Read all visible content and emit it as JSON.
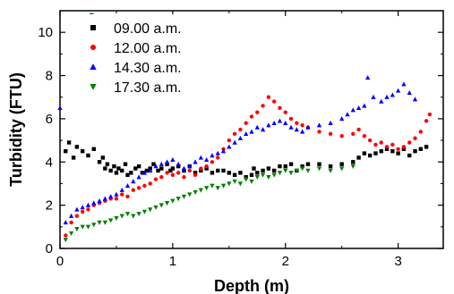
{
  "chart_data": {
    "type": "scatter",
    "xlabel": "Depth (m)",
    "ylabel": "Turbidity (FTU)",
    "xlim": [
      0,
      3.4
    ],
    "ylim": [
      0,
      11
    ],
    "x_ticks": [
      "0",
      "1",
      "2",
      "3"
    ],
    "y_ticks": [
      "0",
      "2",
      "4",
      "6",
      "8",
      "10"
    ],
    "legend_position": "top-left",
    "series": [
      {
        "name": "09.00 a.m.",
        "color": "#000000",
        "marker": "square",
        "points": [
          [
            0.05,
            4.5
          ],
          [
            0.08,
            4.9
          ],
          [
            0.12,
            4.2
          ],
          [
            0.15,
            4.7
          ],
          [
            0.2,
            4.5
          ],
          [
            0.25,
            4.3
          ],
          [
            0.3,
            4.6
          ],
          [
            0.35,
            4.0
          ],
          [
            0.38,
            4.2
          ],
          [
            0.4,
            3.7
          ],
          [
            0.42,
            3.9
          ],
          [
            0.45,
            3.6
          ],
          [
            0.48,
            3.8
          ],
          [
            0.5,
            3.5
          ],
          [
            0.52,
            3.7
          ],
          [
            0.55,
            3.6
          ],
          [
            0.58,
            3.9
          ],
          [
            0.6,
            3.4
          ],
          [
            0.63,
            3.5
          ],
          [
            0.67,
            3.7
          ],
          [
            0.7,
            3.8
          ],
          [
            0.73,
            3.5
          ],
          [
            0.77,
            3.6
          ],
          [
            0.8,
            3.7
          ],
          [
            0.83,
            3.9
          ],
          [
            0.87,
            3.6
          ],
          [
            0.9,
            3.7
          ],
          [
            0.95,
            3.9
          ],
          [
            0.98,
            3.6
          ],
          [
            1.0,
            3.7
          ],
          [
            1.05,
            3.8
          ],
          [
            1.1,
            3.6
          ],
          [
            1.15,
            3.8
          ],
          [
            1.2,
            3.5
          ],
          [
            1.25,
            3.6
          ],
          [
            1.3,
            3.7
          ],
          [
            1.35,
            3.5
          ],
          [
            1.4,
            3.6
          ],
          [
            1.45,
            3.6
          ],
          [
            1.5,
            3.5
          ],
          [
            1.55,
            3.4
          ],
          [
            1.6,
            3.5
          ],
          [
            1.65,
            3.3
          ],
          [
            1.7,
            3.4
          ],
          [
            1.72,
            3.7
          ],
          [
            1.75,
            3.5
          ],
          [
            1.8,
            3.6
          ],
          [
            1.85,
            3.7
          ],
          [
            1.9,
            3.6
          ],
          [
            1.95,
            3.8
          ],
          [
            2.0,
            3.8
          ],
          [
            2.05,
            3.9
          ],
          [
            2.1,
            3.6
          ],
          [
            2.15,
            3.8
          ],
          [
            2.2,
            3.9
          ],
          [
            2.3,
            3.9
          ],
          [
            2.4,
            3.8
          ],
          [
            2.5,
            3.9
          ],
          [
            2.6,
            4.0
          ],
          [
            2.65,
            4.2
          ],
          [
            2.7,
            4.4
          ],
          [
            2.75,
            4.3
          ],
          [
            2.8,
            4.4
          ],
          [
            2.85,
            4.5
          ],
          [
            2.9,
            4.6
          ],
          [
            2.95,
            4.5
          ],
          [
            3.0,
            4.4
          ],
          [
            3.05,
            4.6
          ],
          [
            3.1,
            4.3
          ],
          [
            3.15,
            4.5
          ],
          [
            3.2,
            4.6
          ],
          [
            3.25,
            4.7
          ]
        ]
      },
      {
        "name": "12.00 a.m.",
        "color": "#ff0000",
        "marker": "circle",
        "points": [
          [
            0.05,
            0.6
          ],
          [
            0.1,
            1.2
          ],
          [
            0.15,
            1.5
          ],
          [
            0.2,
            1.7
          ],
          [
            0.25,
            1.8
          ],
          [
            0.3,
            2.0
          ],
          [
            0.35,
            2.1
          ],
          [
            0.4,
            2.2
          ],
          [
            0.45,
            2.3
          ],
          [
            0.5,
            2.3
          ],
          [
            0.55,
            2.5
          ],
          [
            0.6,
            2.4
          ],
          [
            0.65,
            2.7
          ],
          [
            0.7,
            2.8
          ],
          [
            0.75,
            2.9
          ],
          [
            0.8,
            3.0
          ],
          [
            0.85,
            3.2
          ],
          [
            0.9,
            3.3
          ],
          [
            0.95,
            3.5
          ],
          [
            1.0,
            3.4
          ],
          [
            1.05,
            3.5
          ],
          [
            1.1,
            3.3
          ],
          [
            1.15,
            3.6
          ],
          [
            1.2,
            3.4
          ],
          [
            1.25,
            3.7
          ],
          [
            1.3,
            3.8
          ],
          [
            1.35,
            4.0
          ],
          [
            1.4,
            4.2
          ],
          [
            1.45,
            4.6
          ],
          [
            1.5,
            5.0
          ],
          [
            1.55,
            5.3
          ],
          [
            1.6,
            5.5
          ],
          [
            1.65,
            5.8
          ],
          [
            1.7,
            6.1
          ],
          [
            1.75,
            6.3
          ],
          [
            1.8,
            6.6
          ],
          [
            1.85,
            7.0
          ],
          [
            1.9,
            6.8
          ],
          [
            1.95,
            6.5
          ],
          [
            2.0,
            6.3
          ],
          [
            2.05,
            6.0
          ],
          [
            2.1,
            5.8
          ],
          [
            2.15,
            5.7
          ],
          [
            2.2,
            5.6
          ],
          [
            2.3,
            5.4
          ],
          [
            2.4,
            5.3
          ],
          [
            2.5,
            5.2
          ],
          [
            2.6,
            5.3
          ],
          [
            2.65,
            5.5
          ],
          [
            2.7,
            5.2
          ],
          [
            2.75,
            5.0
          ],
          [
            2.8,
            4.8
          ],
          [
            2.85,
            4.9
          ],
          [
            2.9,
            4.7
          ],
          [
            2.95,
            4.8
          ],
          [
            3.0,
            4.6
          ],
          [
            3.05,
            4.7
          ],
          [
            3.1,
            4.9
          ],
          [
            3.15,
            5.1
          ],
          [
            3.2,
            5.4
          ],
          [
            3.25,
            5.9
          ],
          [
            3.28,
            6.2
          ]
        ]
      },
      {
        "name": "14.30 a.m.",
        "color": "#0000ff",
        "marker": "triangle-up",
        "points": [
          [
            0.0,
            6.5
          ],
          [
            0.05,
            1.2
          ],
          [
            0.1,
            1.5
          ],
          [
            0.15,
            1.8
          ],
          [
            0.2,
            1.9
          ],
          [
            0.25,
            2.0
          ],
          [
            0.3,
            2.1
          ],
          [
            0.35,
            2.2
          ],
          [
            0.4,
            2.3
          ],
          [
            0.45,
            2.4
          ],
          [
            0.5,
            2.5
          ],
          [
            0.55,
            2.7
          ],
          [
            0.6,
            2.9
          ],
          [
            0.65,
            3.1
          ],
          [
            0.7,
            3.3
          ],
          [
            0.75,
            3.5
          ],
          [
            0.8,
            3.6
          ],
          [
            0.85,
            3.8
          ],
          [
            0.9,
            3.9
          ],
          [
            0.95,
            4.0
          ],
          [
            1.0,
            4.1
          ],
          [
            1.05,
            3.9
          ],
          [
            1.1,
            3.7
          ],
          [
            1.15,
            3.8
          ],
          [
            1.2,
            4.0
          ],
          [
            1.25,
            4.2
          ],
          [
            1.3,
            4.1
          ],
          [
            1.35,
            4.3
          ],
          [
            1.4,
            4.4
          ],
          [
            1.45,
            4.5
          ],
          [
            1.5,
            4.7
          ],
          [
            1.55,
            4.9
          ],
          [
            1.6,
            5.1
          ],
          [
            1.65,
            5.3
          ],
          [
            1.7,
            5.4
          ],
          [
            1.75,
            5.6
          ],
          [
            1.8,
            5.5
          ],
          [
            1.85,
            5.7
          ],
          [
            1.9,
            5.8
          ],
          [
            1.95,
            5.9
          ],
          [
            2.0,
            5.8
          ],
          [
            2.05,
            5.6
          ],
          [
            2.1,
            5.5
          ],
          [
            2.15,
            5.4
          ],
          [
            2.2,
            5.6
          ],
          [
            2.3,
            5.7
          ],
          [
            2.4,
            5.8
          ],
          [
            2.5,
            6.0
          ],
          [
            2.55,
            6.2
          ],
          [
            2.6,
            6.4
          ],
          [
            2.65,
            6.5
          ],
          [
            2.7,
            6.6
          ],
          [
            2.73,
            7.9
          ],
          [
            2.78,
            7.0
          ],
          [
            2.85,
            6.8
          ],
          [
            2.9,
            7.0
          ],
          [
            2.95,
            7.1
          ],
          [
            3.0,
            7.3
          ],
          [
            3.05,
            7.6
          ],
          [
            3.1,
            7.2
          ],
          [
            3.15,
            6.9
          ]
        ]
      },
      {
        "name": "17.30 a.m.",
        "color": "#008000",
        "marker": "triangle-down",
        "points": [
          [
            0.28,
            10.8
          ],
          [
            0.05,
            0.4
          ],
          [
            0.1,
            0.7
          ],
          [
            0.15,
            0.9
          ],
          [
            0.2,
            1.0
          ],
          [
            0.25,
            1.0
          ],
          [
            0.3,
            1.1
          ],
          [
            0.35,
            1.2
          ],
          [
            0.4,
            1.2
          ],
          [
            0.45,
            1.3
          ],
          [
            0.5,
            1.4
          ],
          [
            0.55,
            1.5
          ],
          [
            0.6,
            1.6
          ],
          [
            0.65,
            1.5
          ],
          [
            0.7,
            1.6
          ],
          [
            0.75,
            1.7
          ],
          [
            0.8,
            1.8
          ],
          [
            0.85,
            1.9
          ],
          [
            0.9,
            2.0
          ],
          [
            0.95,
            2.1
          ],
          [
            1.0,
            2.2
          ],
          [
            1.05,
            2.3
          ],
          [
            1.1,
            2.4
          ],
          [
            1.15,
            2.5
          ],
          [
            1.2,
            2.6
          ],
          [
            1.25,
            2.7
          ],
          [
            1.3,
            2.8
          ],
          [
            1.35,
            2.9
          ],
          [
            1.4,
            2.8
          ],
          [
            1.45,
            2.9
          ],
          [
            1.5,
            3.0
          ],
          [
            1.55,
            3.1
          ],
          [
            1.6,
            3.0
          ],
          [
            1.65,
            3.2
          ],
          [
            1.7,
            3.1
          ],
          [
            1.75,
            3.3
          ],
          [
            1.8,
            3.4
          ],
          [
            1.85,
            3.3
          ],
          [
            1.9,
            3.4
          ],
          [
            1.95,
            3.5
          ],
          [
            2.0,
            3.6
          ],
          [
            2.05,
            3.5
          ],
          [
            2.1,
            3.6
          ],
          [
            2.15,
            3.7
          ],
          [
            2.2,
            3.6
          ],
          [
            2.3,
            3.7
          ],
          [
            2.4,
            3.6
          ],
          [
            2.5,
            3.7
          ],
          [
            2.6,
            3.8
          ]
        ]
      }
    ]
  }
}
